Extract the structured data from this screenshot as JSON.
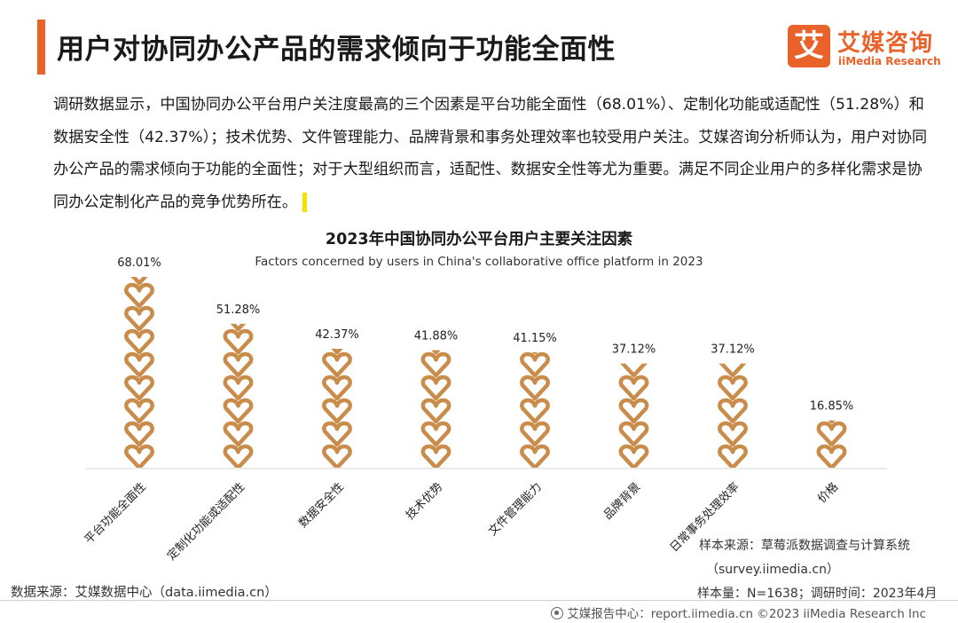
{
  "header": {
    "title": "用户对协同办公产品的需求倾向于功能全面性",
    "accent_color": "#e8622a"
  },
  "logo": {
    "mark": "艾",
    "name_cn": "艾媒咨询",
    "name_en": "iiMedia Research"
  },
  "summary": {
    "text": "调研数据显示，中国协同办公平台用户关注度最高的三个因素是平台功能全面性（68.01%）、定制化功能或适配性（51.28%）和数据安全性（42.37%）；技术优势、文件管理能力、品牌背景和事务处理效率也较受用户关注。艾媒咨询分析师认为，用户对协同办公产品的需求倾向于功能的全面性；对于大型组织而言，适配性、数据安全性等尤为重要。满足不同企业用户的多样化需求是协同办公定制化产品的竞争优势所在。"
  },
  "chart_data": {
    "type": "bar",
    "title": "2023年中国协同办公平台用户主要关注因素",
    "subtitle": "Factors concerned by users in China's collaborative office platform in 2023",
    "categories": [
      "平台功能全面性",
      "定制化功能或适配性",
      "数据安全性",
      "技术优势",
      "文件管理能力",
      "品牌背景",
      "日常事务处理效率",
      "价格"
    ],
    "values": [
      68.01,
      51.28,
      42.37,
      41.88,
      41.15,
      37.12,
      37.12,
      16.85
    ],
    "value_labels": [
      "68.01%",
      "51.28%",
      "42.37%",
      "41.88%",
      "41.15%",
      "37.12%",
      "37.12%",
      "16.85%"
    ],
    "unit": "%",
    "bar_color": "#c98c4a",
    "bar_style": "stacked-heart-pictogram",
    "ylim": [
      0,
      70
    ]
  },
  "sources": {
    "left": "数据来源：艾媒数据中心（data.iimedia.cn）",
    "right_line1": "样本来源：草莓派数据调查与计算系统",
    "right_line2": "（survey.iimedia.cn）",
    "right_line3": "样本量：N=1638；调研时间：2023年4月"
  },
  "footer": {
    "text": "艾媒报告中心：report.iimedia.cn  ©2023  iiMedia Research  Inc",
    "icon": "globe-icon"
  }
}
